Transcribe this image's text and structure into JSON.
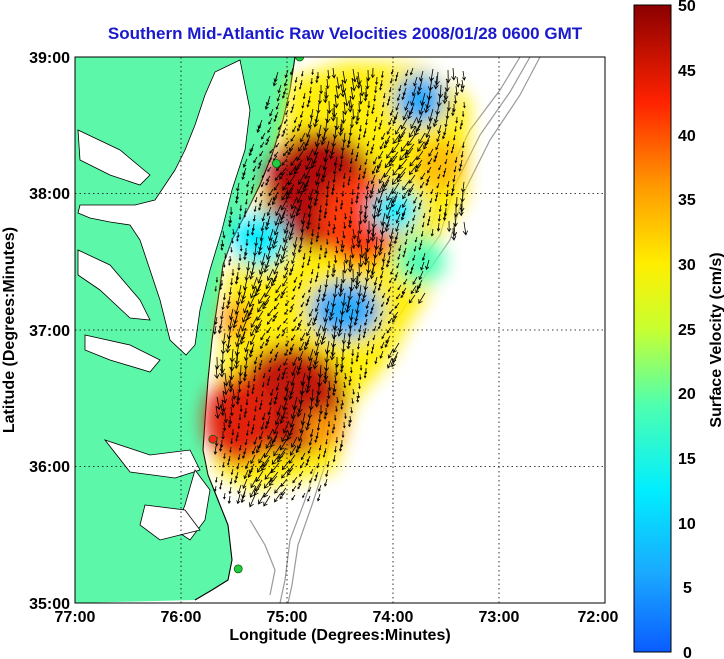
{
  "title": "Southern Mid-Atlantic Raw Velocities 2008/01/28 0600 GMT",
  "xlabel": "Longitude (Degrees:Minutes)",
  "ylabel": "Latitude (Degrees:Minutes)",
  "colorbar_label": "Surface Velocity (cm/s)",
  "x_ticks": [
    "77:00",
    "76:00",
    "75:00",
    "74:00",
    "73:00",
    "72:00"
  ],
  "y_ticks": [
    "39:00",
    "38:00",
    "37:00",
    "36:00",
    "35:00"
  ],
  "colorbar_ticks": [
    "50",
    "45",
    "40",
    "35",
    "30",
    "25",
    "20",
    "15",
    "10",
    "5",
    "0"
  ],
  "colors": {
    "land": "#5cf7a8",
    "coast": "#000000",
    "bathymetry": "#9a9a9a",
    "title": "#1a1acc",
    "station": "#22cc44",
    "station_highlight": "#ff2222"
  },
  "chart_data": {
    "type": "map",
    "xlim": [
      -77,
      -72
    ],
    "ylim": [
      35,
      39
    ],
    "clim": [
      0,
      50
    ],
    "colormap": "jet",
    "grid": true,
    "stations": [
      {
        "lon": -74.88,
        "lat": 39.0
      },
      {
        "lon": -75.1,
        "lat": 38.22
      },
      {
        "lon": -75.7,
        "lat": 36.2
      },
      {
        "lon": -75.46,
        "lat": 35.25
      }
    ]
  }
}
